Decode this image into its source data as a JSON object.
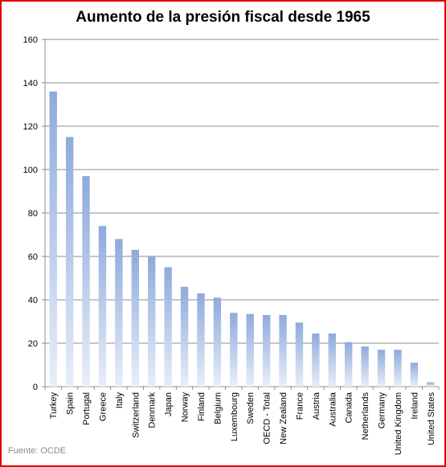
{
  "chart_data": {
    "type": "bar",
    "title": "Aumento de la presión fiscal desde 1965",
    "source": "Fuente: OCDE",
    "xlabel": "",
    "ylabel": "",
    "ylim": [
      0,
      160
    ],
    "yticks": [
      0,
      20,
      40,
      60,
      80,
      100,
      120,
      140,
      160
    ],
    "grid": true,
    "legend": "none",
    "colors": {
      "bar_top": "#8eaadc",
      "bar_bottom": "#e8eef9",
      "grid": "#8c8c8c",
      "frame": "#e00000"
    },
    "categories": [
      "Turkey",
      "Spain",
      "Portugal",
      "Greece",
      "Italy",
      "Switzerland",
      "Denmark",
      "Japan",
      "Norway",
      "Finland",
      "Belgium",
      "Luxembourg",
      "Sweden",
      "OECD - Total",
      "New Zealand",
      "France",
      "Austria",
      "Australia",
      "Canada",
      "Netherlands",
      "Germany",
      "United Kingdom",
      "Ireland",
      "United States"
    ],
    "values": [
      136,
      115,
      97,
      74,
      68,
      63,
      60,
      55,
      46,
      43,
      41,
      34,
      33.5,
      33,
      33,
      29.5,
      24.5,
      24.5,
      20.5,
      18.5,
      17,
      17,
      11,
      2
    ]
  }
}
